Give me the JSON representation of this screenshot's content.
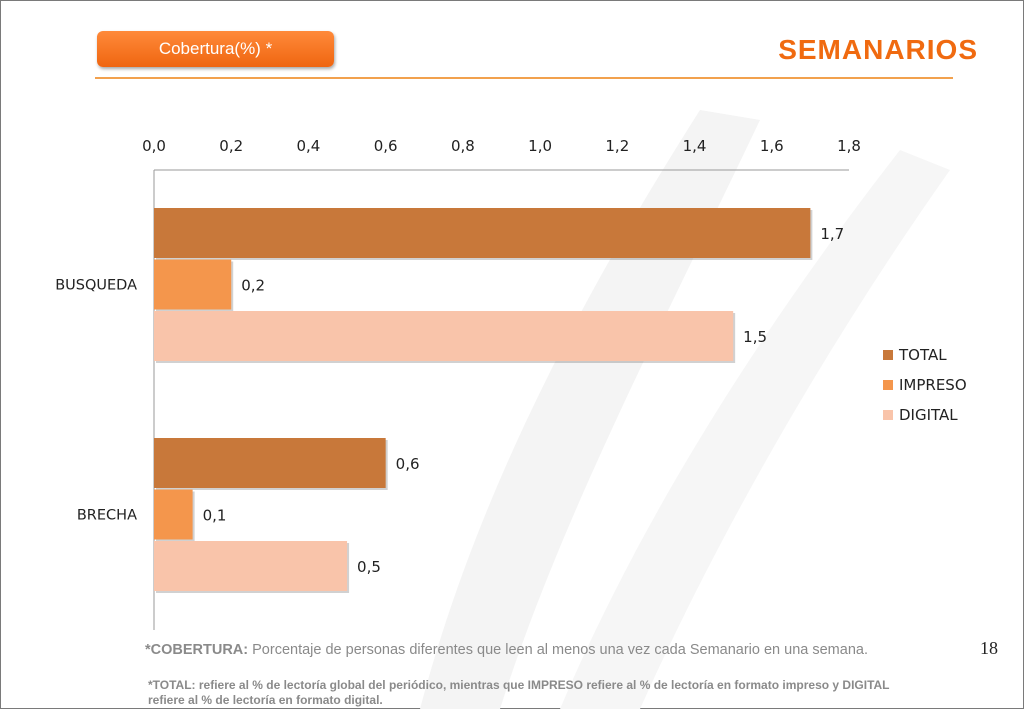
{
  "header": {
    "pill_label": "Cobertura(%) *",
    "title": "SEMANARIOS"
  },
  "page_number": "18",
  "footnote": {
    "bold": "*COBERTURA:",
    "text": " Porcentaje de personas diferentes que leen al menos una vez cada Semanario en una semana.",
    "note": "*TOTAL: refiere al % de lectoría global del periódico, mientras que IMPRESO refiere al % de lectoría en formato impreso y DIGITAL refiere al % de lectoría en formato digital."
  },
  "colors": {
    "accent": "#f06a10",
    "total": "#c8783a",
    "impreso": "#f4964c",
    "digital": "#f9c4aa"
  },
  "chart_data": {
    "type": "bar",
    "orientation": "horizontal",
    "categories": [
      "BUSQUEDA",
      "BRECHA"
    ],
    "series": [
      {
        "name": "TOTAL",
        "values": [
          1.7,
          0.6
        ],
        "labels": [
          "1,7",
          "0,6"
        ]
      },
      {
        "name": "IMPRESO",
        "values": [
          0.2,
          0.1
        ],
        "labels": [
          "0,2",
          "0,1"
        ]
      },
      {
        "name": "DIGITAL",
        "values": [
          1.5,
          0.5
        ],
        "labels": [
          "1,5",
          "0,5"
        ]
      }
    ],
    "xlim": [
      0,
      1.8
    ],
    "x_axis_position": "top",
    "ticks": [
      "0,0",
      "0,2",
      "0,4",
      "0,6",
      "0,8",
      "1,0",
      "1,2",
      "1,4",
      "1,6",
      "1,8"
    ],
    "legend": "right",
    "grid": false
  }
}
